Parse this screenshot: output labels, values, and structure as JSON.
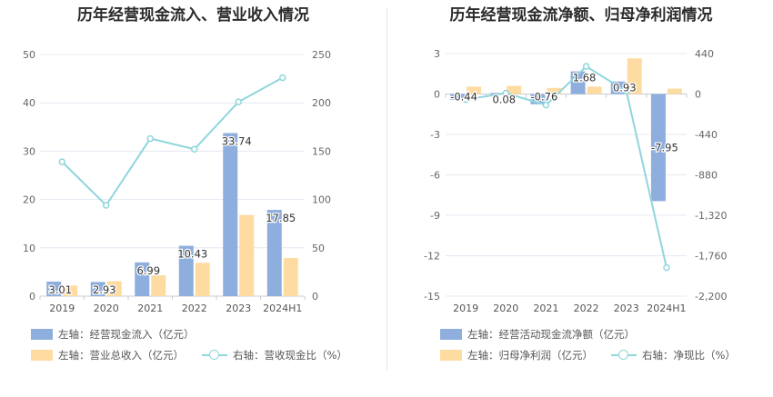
{
  "charts": [
    {
      "title": "历年经营现金流入、营业收入情况",
      "legend": [
        {
          "label": "左轴：经营现金流入（亿元）",
          "color": "#8eaedd",
          "kind": "bar"
        },
        {
          "label": "左轴：营业总收入（亿元）",
          "color": "#fddba1",
          "kind": "bar"
        },
        {
          "label": "右轴：营收现金比（%）",
          "color": "#8fd6dd",
          "kind": "line"
        }
      ]
    },
    {
      "title": "历年经营现金流净额、归母净利润情况",
      "legend": [
        {
          "label": "左轴：经营活动现金流净额（亿元）",
          "color": "#8eaedd",
          "kind": "bar"
        },
        {
          "label": "左轴：归母净利润（亿元）",
          "color": "#fddba1",
          "kind": "bar"
        },
        {
          "label": "右轴：净现比（%）",
          "color": "#8fd6dd",
          "kind": "line"
        }
      ]
    }
  ],
  "chart_data": [
    {
      "type": "bar",
      "title": "历年经营现金流入、营业收入情况",
      "categories": [
        "2019",
        "2020",
        "2021",
        "2022",
        "2023",
        "2024H1"
      ],
      "left_axis": {
        "min": 0,
        "max": 50,
        "ticks": [
          "0",
          "10",
          "20",
          "30",
          "40",
          "50"
        ]
      },
      "right_axis": {
        "min": 0,
        "max": 250,
        "ticks": [
          "0",
          "50",
          "100",
          "150",
          "200",
          "250"
        ]
      },
      "series": [
        {
          "name": "左轴：经营现金流入（亿元）",
          "axis": "left",
          "kind": "bar",
          "color": "#8eaedd",
          "values": [
            3.01,
            2.93,
            6.99,
            10.43,
            33.74,
            17.85
          ],
          "labels": [
            "3.01",
            "2.93",
            "6.99",
            "10.43",
            "33.74",
            "17.85"
          ]
        },
        {
          "name": "左轴：营业总收入（亿元）",
          "axis": "left",
          "kind": "bar",
          "color": "#fddba1",
          "values": [
            2.2,
            3.1,
            4.3,
            6.9,
            16.8,
            7.9
          ]
        },
        {
          "name": "右轴：营收现金比（%）",
          "axis": "right",
          "kind": "line",
          "color": "#8fd6dd",
          "values": [
            139,
            94,
            163,
            152,
            201,
            226
          ]
        }
      ],
      "grid": true
    },
    {
      "type": "bar",
      "title": "历年经营现金流净额、归母净利润情况",
      "categories": [
        "2019",
        "2020",
        "2021",
        "2022",
        "2023",
        "2024H1"
      ],
      "left_axis": {
        "min": -15,
        "max": 3,
        "ticks": [
          "3",
          "0",
          "-3",
          "-6",
          "-9",
          "-12",
          "-15"
        ]
      },
      "right_axis": {
        "min": -2200,
        "max": 440,
        "ticks": [
          "440",
          "0",
          "-440",
          "-880",
          "-1,320",
          "-1,760",
          "-2,200"
        ]
      },
      "series": [
        {
          "name": "左轴：经营活动现金流净额（亿元）",
          "axis": "left",
          "kind": "bar",
          "color": "#8eaedd",
          "values": [
            -0.44,
            0.08,
            -0.76,
            1.68,
            0.93,
            -7.95
          ],
          "labels": [
            "-0.44",
            "0.08",
            "-0.76",
            "1.68",
            "0.93",
            "-7.95"
          ]
        },
        {
          "name": "左轴：归母净利润（亿元）",
          "axis": "left",
          "kind": "bar",
          "color": "#fddba1",
          "values": [
            0.55,
            0.6,
            0.45,
            0.55,
            2.65,
            0.4
          ]
        },
        {
          "name": "右轴：净现比（%）",
          "axis": "right",
          "kind": "line",
          "color": "#8fd6dd",
          "values": [
            -60,
            10,
            -120,
            300,
            30,
            -1890
          ]
        }
      ],
      "grid": true
    }
  ]
}
